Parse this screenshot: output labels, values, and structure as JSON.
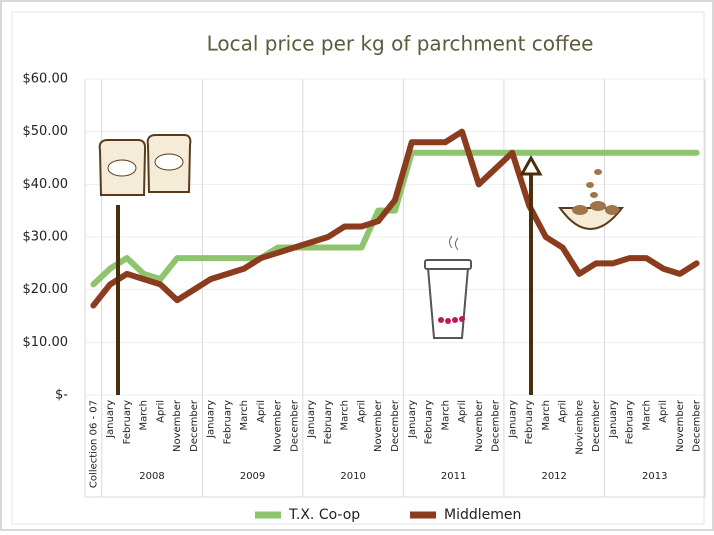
{
  "chart_data": {
    "type": "line",
    "title": "Local price per kg of parchment coffee",
    "categories": [
      "Collection 06 - 07",
      "January",
      "February",
      "March",
      "April",
      "November",
      "December",
      "January",
      "February",
      "March",
      "April",
      "November",
      "December",
      "January",
      "February",
      "March",
      "April",
      "November",
      "December",
      "January",
      "February",
      "March",
      "April",
      "November",
      "December",
      "January",
      "February",
      "March",
      "April",
      "Noviembre",
      "December",
      "January",
      "February",
      "March",
      "April",
      "November",
      "December"
    ],
    "category_groups": [
      null,
      "2008",
      "2008",
      "2008",
      "2008",
      "2008",
      "2008",
      "2009",
      "2009",
      "2009",
      "2009",
      "2009",
      "2009",
      "2010",
      "2010",
      "2010",
      "2010",
      "2010",
      "2010",
      "2011",
      "2011",
      "2011",
      "2011",
      "2011",
      "2011",
      "2012",
      "2012",
      "2012",
      "2012",
      "2012",
      "2012",
      "2013",
      "2013",
      "2013",
      "2013",
      "2013",
      "2013"
    ],
    "series": [
      {
        "name": "T.X. Co-op",
        "color": "#8fc46f",
        "values": [
          21,
          24,
          26,
          23,
          22,
          26,
          26,
          26,
          26,
          26,
          26,
          28,
          28,
          28,
          28,
          28,
          28,
          35,
          35,
          46,
          46,
          46,
          46,
          46,
          46,
          46,
          46,
          46,
          46,
          46,
          46,
          46,
          46,
          46,
          46,
          46,
          46
        ]
      },
      {
        "name": "Middlemen",
        "color": "#8b3b1e",
        "values": [
          17,
          21,
          23,
          22,
          21,
          18,
          20,
          22,
          23,
          24,
          26,
          27,
          28,
          29,
          30,
          32,
          32,
          33,
          37,
          48,
          48,
          48,
          50,
          40,
          43,
          46,
          36,
          30,
          28,
          23,
          25,
          25,
          26,
          26,
          24,
          23,
          25
        ]
      }
    ],
    "ylim": [
      0,
      60
    ],
    "yticks": [
      {
        "value": 0,
        "label": "$-"
      },
      {
        "value": 10,
        "label": "$10.00"
      },
      {
        "value": 20,
        "label": "$20.00"
      },
      {
        "value": 30,
        "label": "$30.00"
      },
      {
        "value": 40,
        "label": "$40.00"
      },
      {
        "value": 50,
        "label": "$50.00"
      },
      {
        "value": 60,
        "label": "$60.00"
      }
    ],
    "grid": true
  }
}
